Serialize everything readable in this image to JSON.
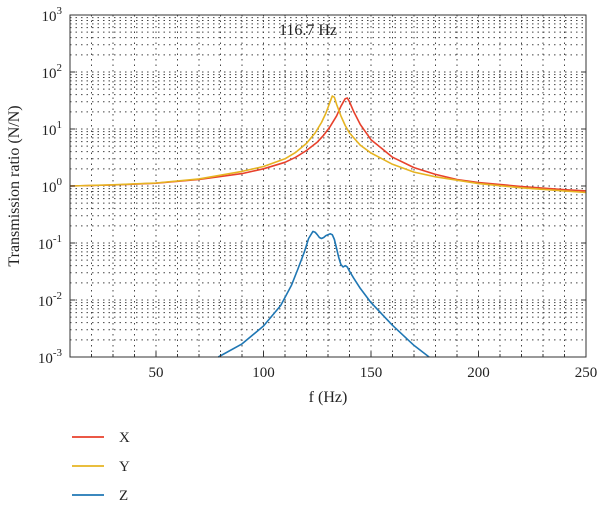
{
  "chart_data": {
    "type": "line",
    "title": "",
    "xlabel": "f (Hz)",
    "ylabel": "Transmission ratio (N/N)",
    "annotation": "116.7 Hz",
    "x_scale": "linear",
    "y_scale": "log",
    "xlim": [
      10,
      250
    ],
    "ylim": [
      0.001,
      1000
    ],
    "x_ticks": [
      50,
      100,
      150,
      200,
      250
    ],
    "x_tick_labels": [
      "50",
      "100",
      "150",
      "200",
      "250"
    ],
    "y_ticks": [
      0.001,
      0.01,
      0.1,
      1,
      10,
      100,
      1000
    ],
    "y_tick_labels": [
      {
        "base": "10",
        "exp": "-3"
      },
      {
        "base": "10",
        "exp": "-2"
      },
      {
        "base": "10",
        "exp": "-1"
      },
      {
        "base": "10",
        "exp": "0"
      },
      {
        "base": "10",
        "exp": "1"
      },
      {
        "base": "10",
        "exp": "2"
      },
      {
        "base": "10",
        "exp": "3"
      }
    ],
    "grid": true,
    "grid_style": "dotted",
    "legend_position": "bottom-left",
    "series": [
      {
        "name": "X",
        "color": "#e8412c",
        "x": [
          10,
          30,
          50,
          70,
          90,
          100,
          110,
          115,
          120,
          125,
          128,
          131,
          134,
          136,
          138,
          139,
          140,
          142,
          145,
          150,
          160,
          170,
          180,
          190,
          200,
          220,
          240,
          250
        ],
        "y": [
          1.0,
          1.04,
          1.12,
          1.3,
          1.65,
          2.0,
          2.6,
          3.2,
          4.2,
          5.9,
          7.8,
          11,
          17,
          25,
          34,
          35,
          30,
          20,
          12,
          6.5,
          3.2,
          2.1,
          1.6,
          1.3,
          1.15,
          0.98,
          0.86,
          0.82
        ]
      },
      {
        "name": "Y",
        "color": "#e6b422",
        "x": [
          10,
          30,
          50,
          70,
          90,
          100,
          110,
          115,
          120,
          124,
          127,
          129,
          131,
          132,
          133,
          134,
          136,
          138,
          140,
          145,
          150,
          160,
          170,
          180,
          200,
          220,
          240,
          250
        ],
        "y": [
          1.0,
          1.05,
          1.13,
          1.33,
          1.8,
          2.2,
          3.0,
          3.9,
          5.6,
          8.5,
          13,
          19,
          30,
          38,
          36,
          27,
          17,
          11.5,
          8.5,
          5.2,
          3.8,
          2.4,
          1.75,
          1.45,
          1.1,
          0.93,
          0.82,
          0.77
        ]
      },
      {
        "name": "Z",
        "color": "#1f77b4",
        "x": [
          79,
          90,
          100,
          108,
          113,
          116,
          119,
          121,
          123,
          124,
          125,
          126,
          127,
          128,
          129,
          131,
          132,
          133,
          134,
          135,
          136,
          137,
          138,
          139,
          140,
          142,
          145,
          150,
          160,
          170,
          177
        ],
        "y": [
          0.001,
          0.0017,
          0.0035,
          0.008,
          0.018,
          0.035,
          0.07,
          0.12,
          0.16,
          0.155,
          0.14,
          0.125,
          0.12,
          0.125,
          0.135,
          0.145,
          0.14,
          0.115,
          0.08,
          0.055,
          0.042,
          0.038,
          0.04,
          0.038,
          0.032,
          0.024,
          0.016,
          0.009,
          0.0036,
          0.0016,
          0.001
        ]
      }
    ]
  }
}
